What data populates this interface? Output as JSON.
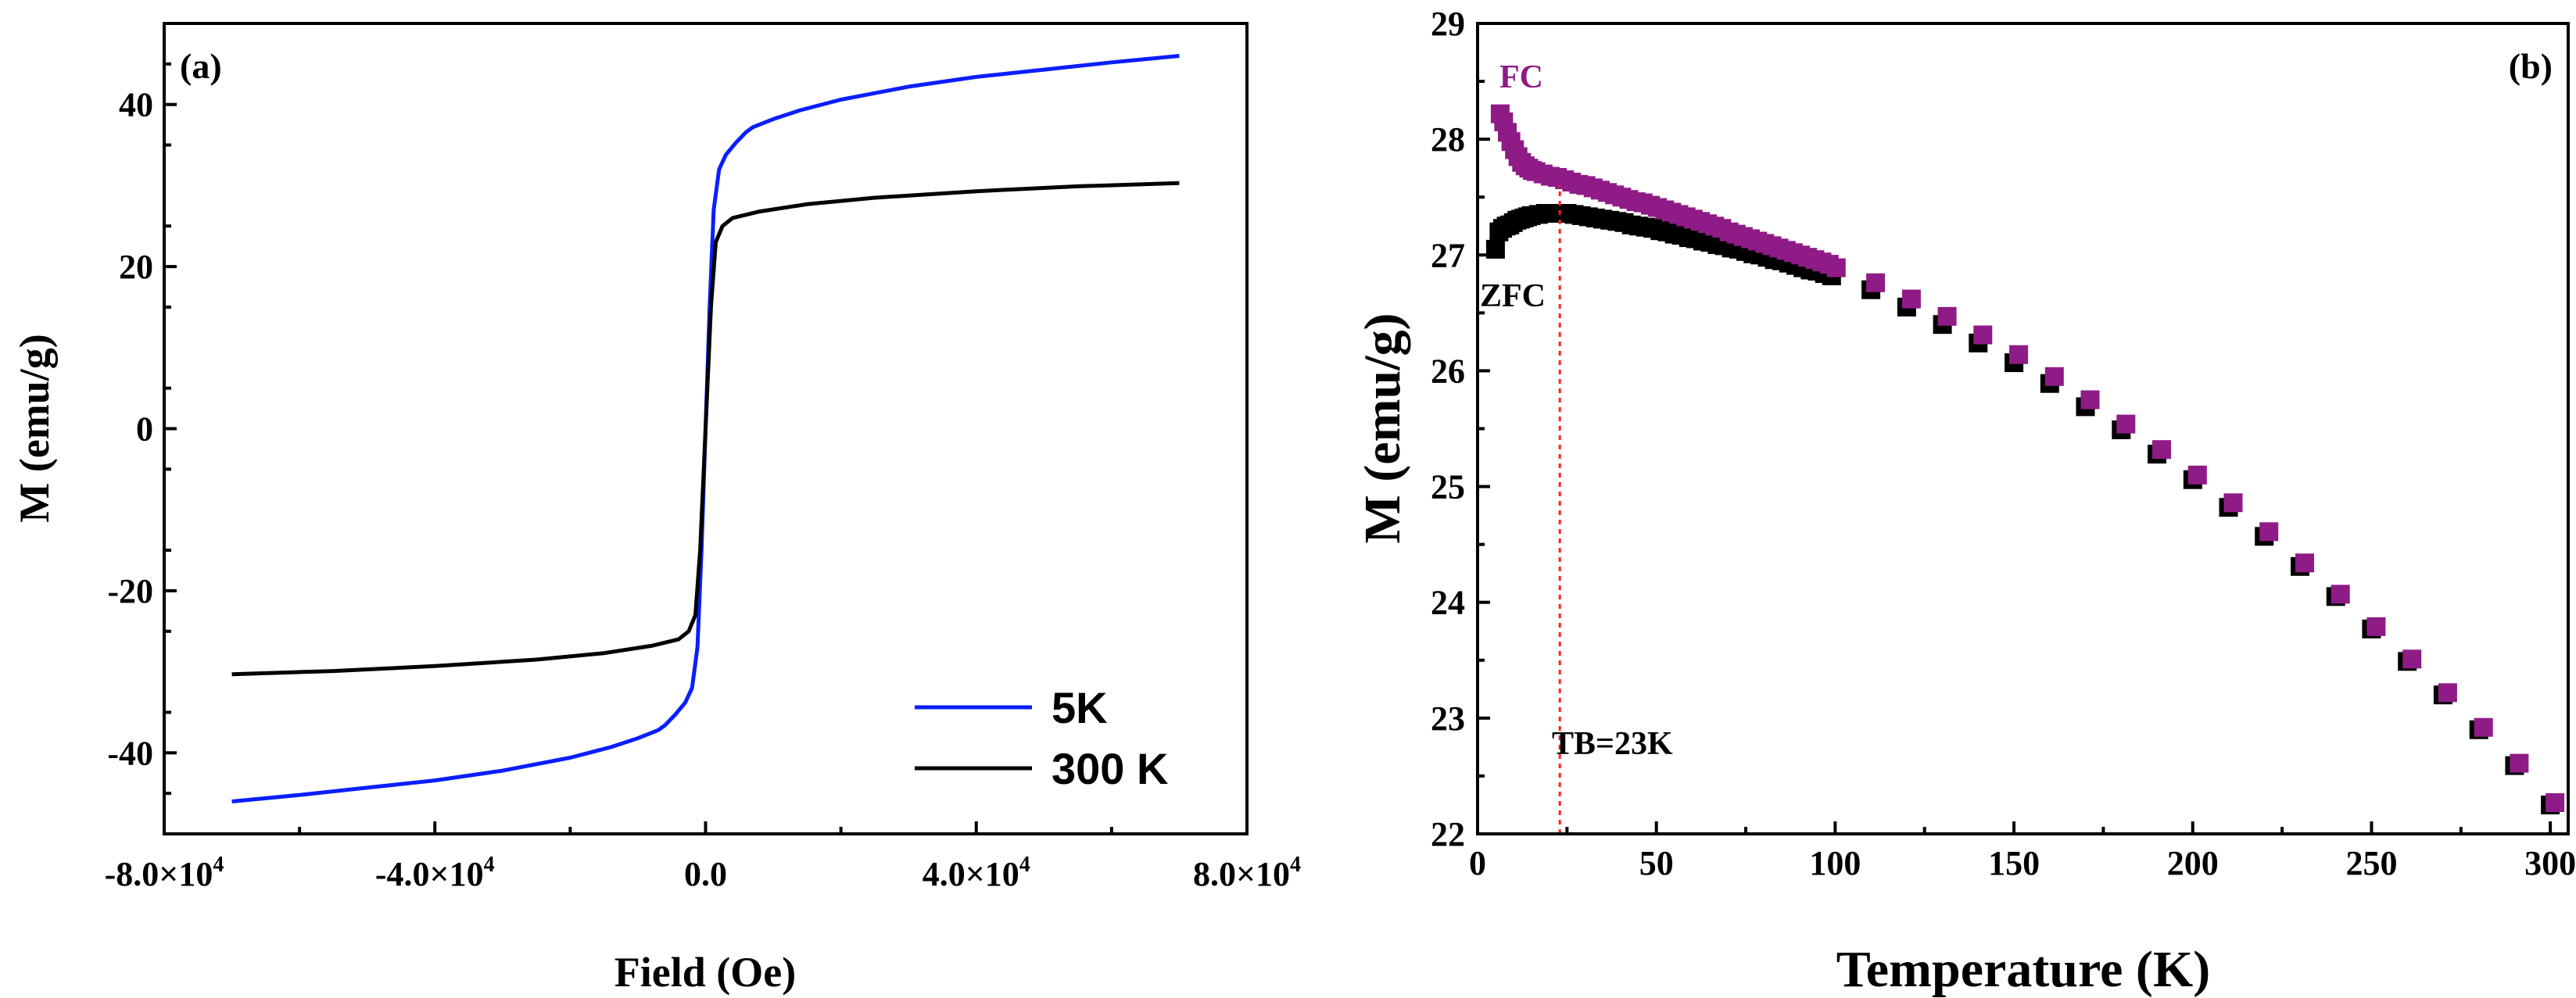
{
  "chart_data": [
    {
      "type": "line",
      "panel_label": "(a)",
      "xlabel": "Field (Oe)",
      "ylabel": "M (emu/g)",
      "xlim": [
        -80000,
        80000
      ],
      "ylim": [
        -50,
        50
      ],
      "xticks": [
        {
          "value": -80000,
          "mantissa": "-8.0",
          "exp": "4"
        },
        {
          "value": -40000,
          "mantissa": "-4.0",
          "exp": "4"
        },
        {
          "value": 0,
          "mantissa": "0.0",
          "exp": ""
        },
        {
          "value": 40000,
          "mantissa": "4.0",
          "exp": "4"
        },
        {
          "value": 80000,
          "mantissa": "8.0",
          "exp": "4"
        }
      ],
      "yticks": [
        {
          "value": -40,
          "label": "-40"
        },
        {
          "value": -20,
          "label": "-20"
        },
        {
          "value": 0,
          "label": "0"
        },
        {
          "value": 20,
          "label": "20"
        },
        {
          "value": 40,
          "label": "40"
        }
      ],
      "legend_position": "bottom-right",
      "series": [
        {
          "name": "5K",
          "color": "#0a1eff",
          "points": [
            [
              -70000,
              -46
            ],
            [
              -60000,
              -45.2
            ],
            [
              -50000,
              -44.3
            ],
            [
              -40000,
              -43.4
            ],
            [
              -30000,
              -42.2
            ],
            [
              -20000,
              -40.6
            ],
            [
              -14000,
              -39.3
            ],
            [
              -10000,
              -38.2
            ],
            [
              -7000,
              -37.2
            ],
            [
              -6000,
              -36.6
            ],
            [
              -4500,
              -35.3
            ],
            [
              -3000,
              -33.8
            ],
            [
              -2000,
              -32
            ],
            [
              -1200,
              -27
            ],
            [
              -600,
              -15
            ],
            [
              0,
              0
            ],
            [
              600,
              15
            ],
            [
              1200,
              27
            ],
            [
              2000,
              32
            ],
            [
              3000,
              33.8
            ],
            [
              4500,
              35.3
            ],
            [
              6000,
              36.6
            ],
            [
              7000,
              37.2
            ],
            [
              10000,
              38.2
            ],
            [
              14000,
              39.3
            ],
            [
              20000,
              40.6
            ],
            [
              30000,
              42.2
            ],
            [
              40000,
              43.4
            ],
            [
              50000,
              44.3
            ],
            [
              60000,
              45.2
            ],
            [
              70000,
              46
            ]
          ]
        },
        {
          "name": "300 K",
          "color": "#000000",
          "points": [
            [
              -70000,
              -30.3
            ],
            [
              -55000,
              -29.9
            ],
            [
              -40000,
              -29.3
            ],
            [
              -25000,
              -28.5
            ],
            [
              -15000,
              -27.7
            ],
            [
              -8000,
              -26.8
            ],
            [
              -4000,
              -26
            ],
            [
              -2500,
              -25
            ],
            [
              -1500,
              -23
            ],
            [
              -800,
              -15
            ],
            [
              0,
              0
            ],
            [
              800,
              15
            ],
            [
              1500,
              23
            ],
            [
              2500,
              25
            ],
            [
              4000,
              26
            ],
            [
              8000,
              26.8
            ],
            [
              15000,
              27.7
            ],
            [
              25000,
              28.5
            ],
            [
              40000,
              29.3
            ],
            [
              55000,
              29.9
            ],
            [
              70000,
              30.3
            ]
          ]
        }
      ]
    },
    {
      "type": "scatter",
      "panel_label": "(b)",
      "xlabel": "Temperature (K)",
      "ylabel": "M (emu/g)",
      "xlim": [
        0,
        305
      ],
      "ylim": [
        22,
        29
      ],
      "xticks": [
        0,
        50,
        100,
        150,
        200,
        250,
        300
      ],
      "yticks": [
        22,
        23,
        24,
        25,
        26,
        27,
        28,
        29
      ],
      "annotations": {
        "fc": "FC",
        "zfc": "ZFC",
        "tb": "TB=23K",
        "tb_value": 23
      },
      "series": [
        {
          "name": "FC",
          "color": "#8e1b86",
          "points": [
            [
              5,
              28.22
            ],
            [
              6,
              28.15
            ],
            [
              7,
              28.06
            ],
            [
              8,
              27.98
            ],
            [
              9,
              27.91
            ],
            [
              10,
              27.85
            ],
            [
              11,
              27.8
            ],
            [
              12,
              27.77
            ],
            [
              13,
              27.75
            ],
            [
              14,
              27.73
            ],
            [
              15,
              27.72
            ],
            [
              17,
              27.7
            ],
            [
              19,
              27.68
            ],
            [
              21,
              27.67
            ],
            [
              23,
              27.65
            ],
            [
              25,
              27.63
            ],
            [
              27,
              27.61
            ],
            [
              29,
              27.6
            ],
            [
              31,
              27.58
            ],
            [
              33,
              27.56
            ],
            [
              35,
              27.54
            ],
            [
              37,
              27.52
            ],
            [
              39,
              27.5
            ],
            [
              41,
              27.48
            ],
            [
              43,
              27.46
            ],
            [
              45,
              27.45
            ],
            [
              47,
              27.43
            ],
            [
              49,
              27.41
            ],
            [
              51,
              27.39
            ],
            [
              53,
              27.37
            ],
            [
              55,
              27.35
            ],
            [
              57,
              27.33
            ],
            [
              59,
              27.31
            ],
            [
              61,
              27.29
            ],
            [
              63,
              27.27
            ],
            [
              65,
              27.25
            ],
            [
              67,
              27.23
            ],
            [
              69,
              27.2
            ],
            [
              71,
              27.18
            ],
            [
              73,
              27.16
            ],
            [
              75,
              27.14
            ],
            [
              77,
              27.12
            ],
            [
              79,
              27.1
            ],
            [
              81,
              27.08
            ],
            [
              83,
              27.06
            ],
            [
              85,
              27.04
            ],
            [
              87,
              27.02
            ],
            [
              89,
              27
            ],
            [
              91,
              26.98
            ],
            [
              93,
              26.96
            ],
            [
              95,
              26.94
            ],
            [
              97,
              26.92
            ],
            [
              99,
              26.89
            ],
            [
              110,
              26.76
            ],
            [
              120,
              26.62
            ],
            [
              130,
              26.47
            ],
            [
              140,
              26.31
            ],
            [
              150,
              26.14
            ],
            [
              160,
              25.95
            ],
            [
              170,
              25.75
            ],
            [
              180,
              25.54
            ],
            [
              190,
              25.32
            ],
            [
              200,
              25.1
            ],
            [
              210,
              24.86
            ],
            [
              220,
              24.61
            ],
            [
              230,
              24.34
            ],
            [
              240,
              24.07
            ],
            [
              250,
              23.79
            ],
            [
              260,
              23.51
            ],
            [
              270,
              23.22
            ],
            [
              280,
              22.92
            ],
            [
              290,
              22.61
            ],
            [
              300,
              22.27
            ]
          ]
        },
        {
          "name": "ZFC",
          "color": "#000000",
          "points": [
            [
              5,
              27.05
            ],
            [
              6,
              27.2
            ],
            [
              7,
              27.23
            ],
            [
              8,
              27.25
            ],
            [
              9,
              27.26
            ],
            [
              10,
              27.28
            ],
            [
              11,
              27.3
            ],
            [
              12,
              27.31
            ],
            [
              13,
              27.32
            ],
            [
              14,
              27.33
            ],
            [
              15,
              27.34
            ],
            [
              17,
              27.35
            ],
            [
              19,
              27.36
            ],
            [
              21,
              27.36
            ],
            [
              23,
              27.36
            ],
            [
              25,
              27.36
            ],
            [
              27,
              27.35
            ],
            [
              29,
              27.34
            ],
            [
              31,
              27.33
            ],
            [
              33,
              27.32
            ],
            [
              35,
              27.31
            ],
            [
              37,
              27.3
            ],
            [
              39,
              27.29
            ],
            [
              41,
              27.28
            ],
            [
              43,
              27.26
            ],
            [
              45,
              27.25
            ],
            [
              47,
              27.24
            ],
            [
              49,
              27.23
            ],
            [
              51,
              27.21
            ],
            [
              53,
              27.2
            ],
            [
              55,
              27.18
            ],
            [
              57,
              27.17
            ],
            [
              59,
              27.15
            ],
            [
              61,
              27.14
            ],
            [
              63,
              27.12
            ],
            [
              65,
              27.11
            ],
            [
              67,
              27.09
            ],
            [
              69,
              27.08
            ],
            [
              71,
              27.06
            ],
            [
              73,
              27.05
            ],
            [
              75,
              27.03
            ],
            [
              77,
              27.01
            ],
            [
              79,
              27
            ],
            [
              81,
              26.98
            ],
            [
              83,
              26.96
            ],
            [
              85,
              26.95
            ],
            [
              87,
              26.93
            ],
            [
              89,
              26.91
            ],
            [
              91,
              26.89
            ],
            [
              93,
              26.87
            ],
            [
              95,
              26.86
            ],
            [
              97,
              26.84
            ],
            [
              99,
              26.82
            ],
            [
              110,
              26.7
            ],
            [
              120,
              26.55
            ],
            [
              130,
              26.4
            ],
            [
              140,
              26.24
            ],
            [
              150,
              26.07
            ],
            [
              160,
              25.89
            ],
            [
              170,
              25.69
            ],
            [
              180,
              25.49
            ],
            [
              190,
              25.28
            ],
            [
              200,
              25.06
            ],
            [
              210,
              24.82
            ],
            [
              220,
              24.57
            ],
            [
              230,
              24.31
            ],
            [
              240,
              24.05
            ],
            [
              250,
              23.77
            ],
            [
              260,
              23.49
            ],
            [
              270,
              23.2
            ],
            [
              280,
              22.9
            ],
            [
              290,
              22.59
            ],
            [
              300,
              22.25
            ]
          ]
        }
      ]
    }
  ]
}
